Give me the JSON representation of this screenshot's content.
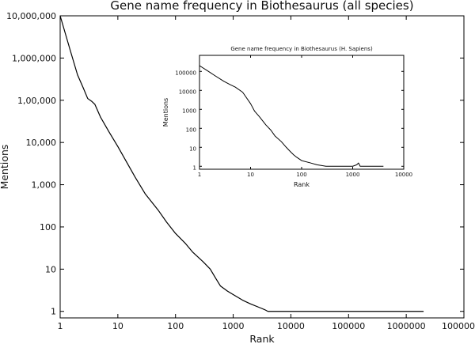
{
  "chart_data": [
    {
      "type": "line",
      "title": "Gene name frequency in Biothesaurus (all species)",
      "xlabel": "Rank",
      "ylabel": "Mentions",
      "xscale": "log",
      "yscale": "log",
      "xlim": [
        1,
        10000000
      ],
      "ylim": [
        0.7,
        10000000
      ],
      "grid": false,
      "x_ticks": [
        1,
        10,
        100,
        1000,
        10000,
        100000,
        1000000,
        10000000
      ],
      "x_tick_labels": [
        "1",
        "10",
        "100",
        "1000",
        "10000",
        "100000",
        "1000000",
        "10000000"
      ],
      "y_ticks": [
        1,
        10,
        100,
        1000,
        10000,
        100000,
        1000000,
        10000000
      ],
      "y_tick_labels": [
        "1",
        "10",
        "100",
        "1,000",
        "10,000",
        "1,00,000",
        "1,000,000",
        "10,000,000"
      ],
      "series": [
        {
          "x": [
            1,
            1.5,
            2,
            2.5,
            3,
            3.5,
            4,
            5,
            7,
            10,
            15,
            20,
            30,
            50,
            70,
            100,
            150,
            200,
            300,
            400,
            500,
            600,
            800,
            1000,
            1500,
            2000,
            3000,
            3500,
            4000,
            10000,
            100000,
            1000000,
            2000000
          ],
          "y": [
            10000000,
            1500000,
            400000,
            200000,
            110000,
            95000,
            80000,
            40000,
            18000,
            8000,
            3000,
            1500,
            600,
            250,
            130,
            70,
            40,
            25,
            15,
            10,
            6,
            4,
            3,
            2.5,
            1.8,
            1.5,
            1.2,
            1.1,
            1,
            1,
            1,
            1,
            1
          ]
        }
      ]
    },
    {
      "type": "line",
      "title": "Gene name frequency in Biothesaurus (H. Sapiens)",
      "xlabel": "Rank",
      "ylabel": "Mentions",
      "xscale": "log",
      "yscale": "log",
      "xlim": [
        1,
        10000
      ],
      "ylim": [
        0.7,
        700000
      ],
      "grid": false,
      "x_ticks": [
        1,
        10,
        100,
        1000,
        10000
      ],
      "x_tick_labels": [
        "1",
        "10",
        "100",
        "1000",
        "10000"
      ],
      "y_ticks": [
        1,
        10,
        100,
        1000,
        10000,
        100000
      ],
      "y_tick_labels": [
        "1",
        "10",
        "100",
        "1000",
        "10000",
        "100000"
      ],
      "series": [
        {
          "x": [
            1,
            1.5,
            2,
            3,
            4,
            5,
            7,
            10,
            12,
            15,
            20,
            25,
            30,
            40,
            50,
            60,
            70,
            80,
            100,
            150,
            200,
            300,
            400,
            500,
            1000,
            1200,
            1300,
            1400,
            2000,
            4000
          ],
          "y": [
            200000,
            100000,
            60000,
            30000,
            20000,
            15000,
            8000,
            2000,
            800,
            400,
            150,
            80,
            40,
            20,
            10,
            6,
            4,
            3,
            2,
            1.5,
            1.2,
            1,
            1,
            1,
            1,
            1.2,
            1.5,
            1,
            1,
            1
          ]
        }
      ]
    }
  ]
}
